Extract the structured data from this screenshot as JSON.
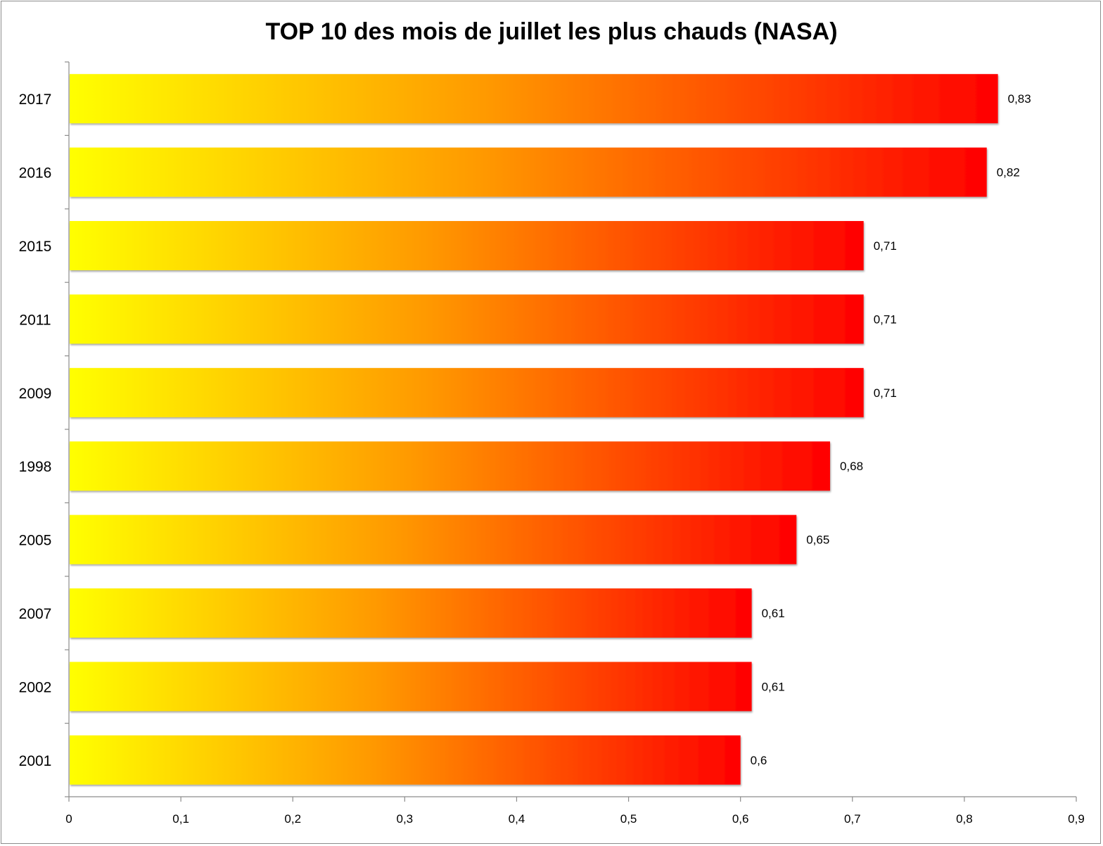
{
  "chart_data": {
    "type": "bar",
    "orientation": "horizontal",
    "title": "TOP 10 des mois de juillet les plus chauds (NASA)",
    "xlabel": "",
    "ylabel": "",
    "xlim": [
      0,
      0.9
    ],
    "x_ticks": [
      "0",
      "0,1",
      "0,2",
      "0,3",
      "0,4",
      "0,5",
      "0,6",
      "0,7",
      "0,8",
      "0,9"
    ],
    "x_tick_values": [
      0,
      0.1,
      0.2,
      0.3,
      0.4,
      0.5,
      0.6,
      0.7,
      0.8,
      0.9
    ],
    "categories": [
      "2017",
      "2016",
      "2015",
      "2011",
      "2009",
      "1998",
      "2005",
      "2007",
      "2002",
      "2001"
    ],
    "values": [
      0.83,
      0.82,
      0.71,
      0.71,
      0.71,
      0.68,
      0.65,
      0.61,
      0.61,
      0.6
    ],
    "value_labels": [
      "0,83",
      "0,82",
      "0,71",
      "0,71",
      "0,71",
      "0,68",
      "0,65",
      "0,61",
      "0,61",
      "0,6"
    ],
    "grid": false,
    "legend": "none",
    "colors": {
      "gradient_start": "#ffff00",
      "gradient_mid": "#ff9900",
      "gradient_end": "#ff0000",
      "axis": "#8c8c8c"
    }
  }
}
